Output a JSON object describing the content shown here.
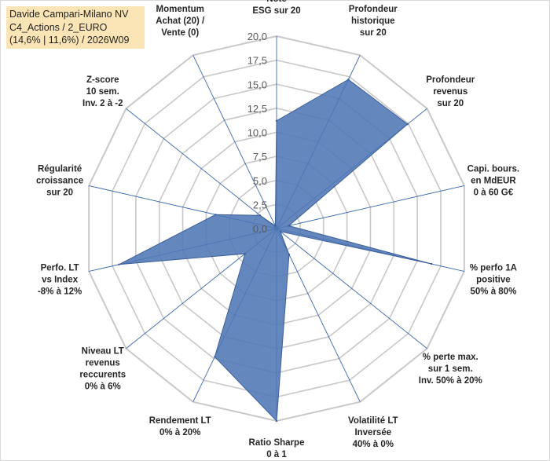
{
  "title_box": {
    "line1": "Davide Campari-Milano NV",
    "line2": "C4_Actions / 2_EURO",
    "line3": "(14,6% | 11,6%) / 2026W09"
  },
  "colors": {
    "fill": "#4f76b5",
    "stroke": "#3d5f99",
    "grid": "#c8c8c8",
    "spoke": "#3a67b0",
    "title_bg": "#fbe5b6"
  },
  "chart_data": {
    "type": "radar",
    "rmin": 0,
    "rmax": 20,
    "ticks": [
      "0,0",
      "2,5",
      "5,0",
      "7,5",
      "10,0",
      "12,5",
      "15,0",
      "17,5",
      "20,0"
    ],
    "categories": [
      [
        "Note",
        "ESG sur 20"
      ],
      [
        "Profondeur",
        "historique",
        "sur 20"
      ],
      [
        "Profondeur",
        "revenus",
        "sur 20"
      ],
      [
        "Capi. bours.",
        "en MdEUR",
        "0 à 60 G€"
      ],
      [
        "% perfo 1A",
        "positive",
        "50% à 80%"
      ],
      [
        "% perte max.",
        "sur 1 sem.",
        "Inv. 50% à 20%"
      ],
      [
        "Volatilité LT",
        "Inversée",
        "40% à 0%"
      ],
      [
        "Ratio Sharpe",
        "0 à 1"
      ],
      [
        "Rendement LT",
        "0% à 20%"
      ],
      [
        "Niveau LT",
        "revenus",
        "reccurents",
        "0% à 6%"
      ],
      [
        "Perfo. LT",
        "vs Index",
        "-8% à 12%"
      ],
      [
        "Régularité",
        "croissance",
        "sur 20"
      ],
      [
        "Z-score",
        "10 sem.",
        "Inv. 2 à -2"
      ],
      [
        "Momentum",
        "Achat (20) /",
        "Vente (0)"
      ]
    ],
    "values": [
      11.2,
      17.2,
      17.4,
      1.3,
      16.5,
      0.5,
      3.0,
      20.0,
      14.8,
      4.2,
      16.8,
      6.5,
      2.2,
      0.3
    ],
    "grid": true,
    "legend": "none"
  }
}
